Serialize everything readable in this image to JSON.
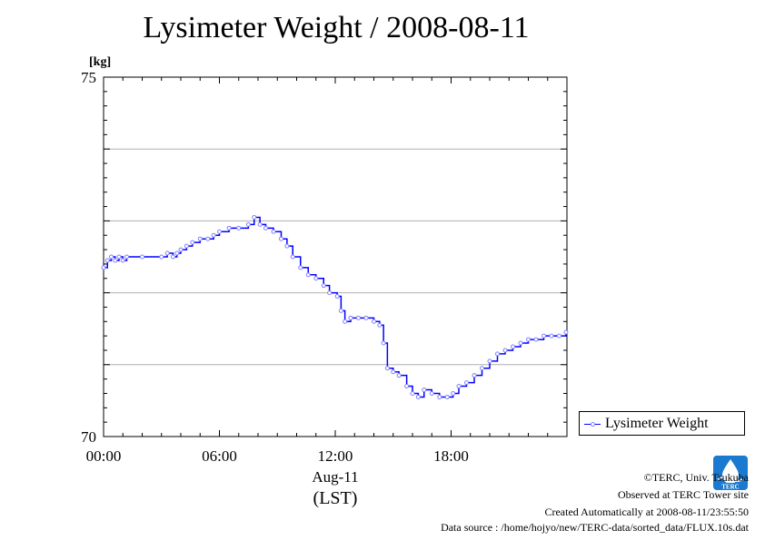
{
  "chart_data": {
    "type": "line",
    "title": "Lysimeter Weight / 2008-08-11",
    "ylabel": "[kg]",
    "ylim": [
      70,
      75
    ],
    "yticks": [
      "75",
      "70"
    ],
    "ygrid": [
      71,
      72,
      73,
      74
    ],
    "xlim": [
      0,
      24
    ],
    "xticks": [
      {
        "value": 0,
        "label": "00:00"
      },
      {
        "value": 6,
        "label": "06:00"
      },
      {
        "value": 12,
        "label": "12:00"
      },
      {
        "value": 18,
        "label": "18:00"
      }
    ],
    "xlabel_date": "Aug-11",
    "xlabel_unit": "(LST)",
    "legend_position": "right",
    "series": [
      {
        "name": "Lysimeter Weight",
        "color": "#0000ff",
        "marker_color": "#8080ff",
        "points": [
          [
            0.0,
            72.35
          ],
          [
            0.2,
            72.45
          ],
          [
            0.4,
            72.5
          ],
          [
            0.6,
            72.45
          ],
          [
            0.8,
            72.5
          ],
          [
            1.0,
            72.45
          ],
          [
            1.2,
            72.5
          ],
          [
            2.0,
            72.5
          ],
          [
            3.0,
            72.5
          ],
          [
            3.3,
            72.55
          ],
          [
            3.6,
            72.5
          ],
          [
            3.8,
            72.55
          ],
          [
            4.0,
            72.6
          ],
          [
            4.3,
            72.65
          ],
          [
            4.6,
            72.7
          ],
          [
            5.0,
            72.75
          ],
          [
            5.4,
            72.75
          ],
          [
            5.7,
            72.8
          ],
          [
            6.0,
            72.85
          ],
          [
            6.5,
            72.9
          ],
          [
            7.0,
            72.9
          ],
          [
            7.5,
            72.95
          ],
          [
            7.8,
            73.05
          ],
          [
            8.1,
            72.95
          ],
          [
            8.4,
            72.9
          ],
          [
            8.8,
            72.85
          ],
          [
            9.2,
            72.75
          ],
          [
            9.5,
            72.65
          ],
          [
            9.8,
            72.5
          ],
          [
            10.2,
            72.35
          ],
          [
            10.6,
            72.25
          ],
          [
            11.0,
            72.2
          ],
          [
            11.4,
            72.1
          ],
          [
            11.7,
            72.0
          ],
          [
            12.1,
            71.95
          ],
          [
            12.3,
            71.75
          ],
          [
            12.5,
            71.6
          ],
          [
            12.8,
            71.65
          ],
          [
            13.2,
            71.65
          ],
          [
            13.6,
            71.65
          ],
          [
            14.0,
            71.6
          ],
          [
            14.3,
            71.55
          ],
          [
            14.5,
            71.3
          ],
          [
            14.7,
            70.95
          ],
          [
            15.0,
            70.9
          ],
          [
            15.3,
            70.85
          ],
          [
            15.7,
            70.7
          ],
          [
            16.0,
            70.6
          ],
          [
            16.3,
            70.55
          ],
          [
            16.6,
            70.65
          ],
          [
            17.0,
            70.6
          ],
          [
            17.4,
            70.55
          ],
          [
            17.8,
            70.55
          ],
          [
            18.1,
            70.6
          ],
          [
            18.4,
            70.7
          ],
          [
            18.8,
            70.75
          ],
          [
            19.2,
            70.85
          ],
          [
            19.6,
            70.95
          ],
          [
            20.0,
            71.05
          ],
          [
            20.4,
            71.15
          ],
          [
            20.8,
            71.2
          ],
          [
            21.2,
            71.25
          ],
          [
            21.6,
            71.3
          ],
          [
            22.0,
            71.35
          ],
          [
            22.4,
            71.35
          ],
          [
            22.8,
            71.4
          ],
          [
            23.2,
            71.4
          ],
          [
            23.6,
            71.4
          ],
          [
            23.95,
            71.45
          ]
        ]
      }
    ]
  },
  "footer": {
    "copyright": "©TERC, Univ. Tsukuba",
    "site": "Observed at TERC Tower site",
    "created": "Created Automatically at 2008-08-11/23:55:50",
    "source": "Data source : /home/hojyo/new/TERC-data/sorted_data/FLUX.10s.dat"
  },
  "logo": {
    "icon": "terc-logo-icon",
    "text": "TERC",
    "color": "#1a7ad0"
  }
}
